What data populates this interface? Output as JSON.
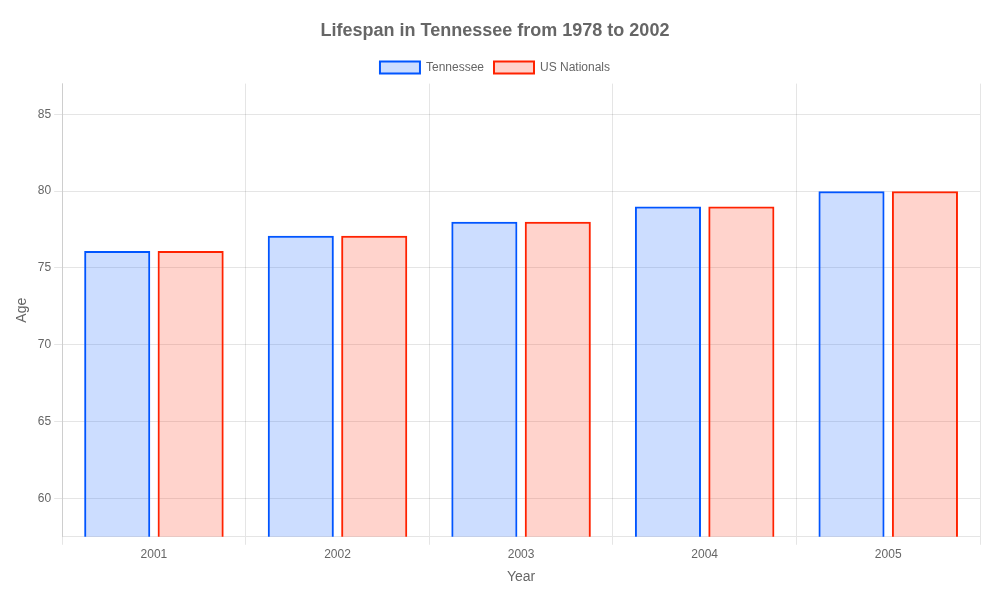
{
  "chart_data": {
    "type": "bar",
    "title": "Lifespan in Tennessee from 1978 to 2002",
    "x_label": "Year",
    "y_label": "Age",
    "categories": [
      "2001",
      "2002",
      "2003",
      "2004",
      "2005"
    ],
    "series": [
      {
        "name": "Tennessee",
        "color": "#0055ff",
        "values": [
          76.1,
          77.1,
          78.0,
          79.0,
          80.0
        ]
      },
      {
        "name": "US Nationals",
        "color": "#ff2200",
        "values": [
          76.1,
          77.1,
          78.0,
          79.0,
          80.0
        ]
      }
    ],
    "ylim": [
      57.5,
      87.0
    ],
    "yticks": [
      60,
      65,
      70,
      75,
      80,
      85
    ],
    "grid": true,
    "legend": "top"
  }
}
